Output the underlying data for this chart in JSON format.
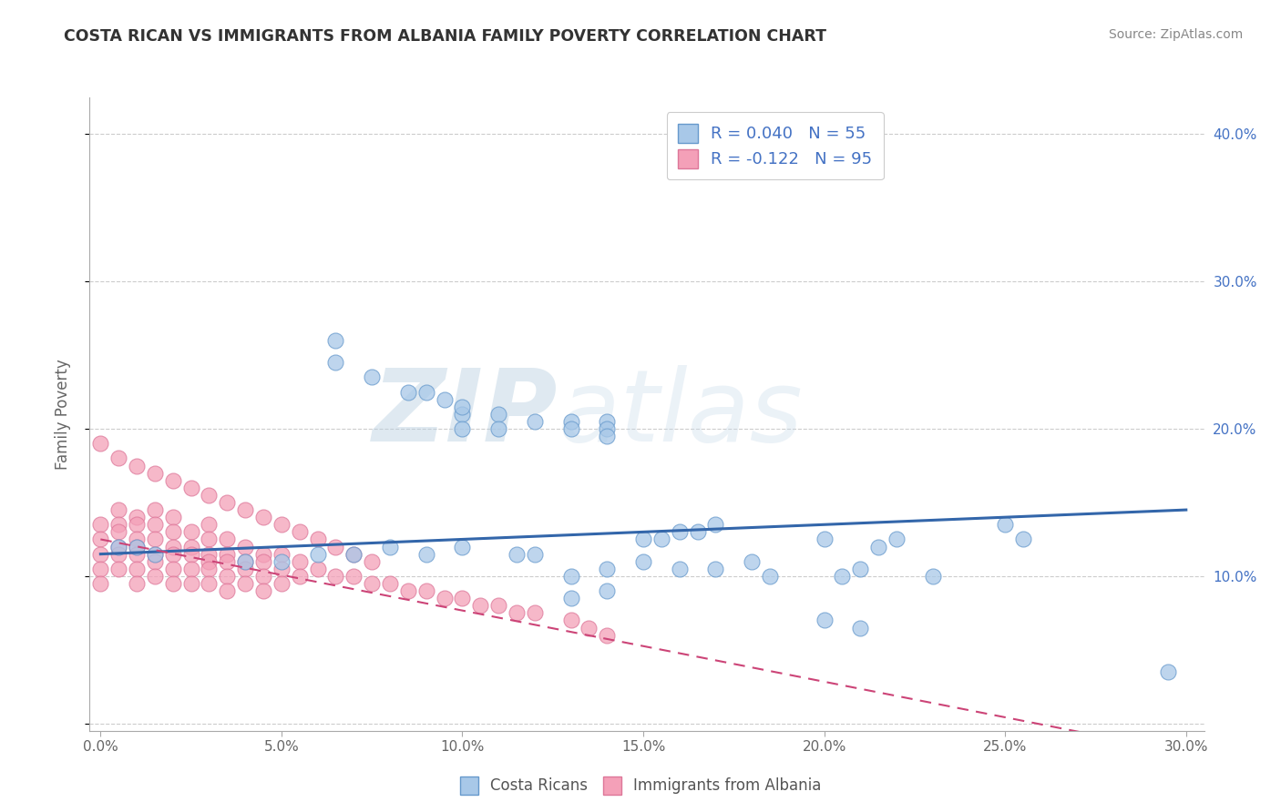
{
  "title": "COSTA RICAN VS IMMIGRANTS FROM ALBANIA FAMILY POVERTY CORRELATION CHART",
  "source": "Source: ZipAtlas.com",
  "ylabel": "Family Poverty",
  "xlim": [
    -0.003,
    0.305
  ],
  "ylim": [
    -0.005,
    0.425
  ],
  "xticks": [
    0.0,
    0.05,
    0.1,
    0.15,
    0.2,
    0.25,
    0.3
  ],
  "xtick_labels": [
    "0.0%",
    "5.0%",
    "10.0%",
    "15.0%",
    "20.0%",
    "25.0%",
    "30.0%"
  ],
  "yticks": [
    0.0,
    0.1,
    0.2,
    0.3,
    0.4
  ],
  "right_ytick_labels": [
    "10.0%",
    "20.0%",
    "30.0%",
    "40.0%"
  ],
  "right_yticks": [
    0.1,
    0.2,
    0.3,
    0.4
  ],
  "legend1_label": "R = 0.040   N = 55",
  "legend2_label": "R = -0.122   N = 95",
  "bottom_legend1": "Costa Ricans",
  "bottom_legend2": "Immigrants from Albania",
  "blue_color": "#a8c8e8",
  "blue_edge_color": "#6699cc",
  "pink_color": "#f4a0b8",
  "pink_edge_color": "#dd7799",
  "blue_line_color": "#3366aa",
  "pink_line_color": "#cc4477",
  "watermark": "ZIPatlas",
  "watermark_color": "#d0dff0",
  "blue_scatter_x": [
    0.065,
    0.065,
    0.075,
    0.085,
    0.09,
    0.095,
    0.1,
    0.1,
    0.1,
    0.11,
    0.11,
    0.12,
    0.13,
    0.13,
    0.14,
    0.14,
    0.14,
    0.15,
    0.155,
    0.16,
    0.165,
    0.17,
    0.2,
    0.205,
    0.21,
    0.215,
    0.25,
    0.255,
    0.295,
    0.04,
    0.05,
    0.06,
    0.07,
    0.08,
    0.09,
    0.1,
    0.115,
    0.12,
    0.13,
    0.14,
    0.15,
    0.16,
    0.17,
    0.18,
    0.185,
    0.22,
    0.23,
    0.005,
    0.01,
    0.015,
    0.13,
    0.14,
    0.2,
    0.21
  ],
  "blue_scatter_y": [
    0.26,
    0.245,
    0.235,
    0.225,
    0.225,
    0.22,
    0.21,
    0.215,
    0.2,
    0.21,
    0.2,
    0.205,
    0.205,
    0.2,
    0.205,
    0.2,
    0.195,
    0.125,
    0.125,
    0.13,
    0.13,
    0.135,
    0.125,
    0.1,
    0.105,
    0.12,
    0.135,
    0.125,
    0.035,
    0.11,
    0.11,
    0.115,
    0.115,
    0.12,
    0.115,
    0.12,
    0.115,
    0.115,
    0.1,
    0.105,
    0.11,
    0.105,
    0.105,
    0.11,
    0.1,
    0.125,
    0.1,
    0.12,
    0.12,
    0.115,
    0.085,
    0.09,
    0.07,
    0.065
  ],
  "pink_scatter_x": [
    0.0,
    0.0,
    0.0,
    0.0,
    0.0,
    0.005,
    0.005,
    0.005,
    0.005,
    0.005,
    0.005,
    0.01,
    0.01,
    0.01,
    0.01,
    0.01,
    0.01,
    0.01,
    0.015,
    0.015,
    0.015,
    0.015,
    0.015,
    0.015,
    0.02,
    0.02,
    0.02,
    0.02,
    0.02,
    0.02,
    0.025,
    0.025,
    0.025,
    0.025,
    0.025,
    0.03,
    0.03,
    0.03,
    0.03,
    0.03,
    0.03,
    0.035,
    0.035,
    0.035,
    0.035,
    0.035,
    0.04,
    0.04,
    0.04,
    0.04,
    0.045,
    0.045,
    0.045,
    0.045,
    0.05,
    0.05,
    0.05,
    0.055,
    0.055,
    0.06,
    0.065,
    0.07,
    0.075,
    0.08,
    0.085,
    0.09,
    0.095,
    0.1,
    0.105,
    0.11,
    0.115,
    0.12,
    0.13,
    0.135,
    0.14,
    0.0,
    0.005,
    0.01,
    0.015,
    0.02,
    0.025,
    0.03,
    0.035,
    0.04,
    0.045,
    0.05,
    0.055,
    0.06,
    0.065,
    0.07,
    0.075
  ],
  "pink_scatter_y": [
    0.135,
    0.125,
    0.115,
    0.105,
    0.095,
    0.145,
    0.135,
    0.13,
    0.12,
    0.115,
    0.105,
    0.14,
    0.135,
    0.125,
    0.12,
    0.115,
    0.105,
    0.095,
    0.145,
    0.135,
    0.125,
    0.115,
    0.11,
    0.1,
    0.14,
    0.13,
    0.12,
    0.115,
    0.105,
    0.095,
    0.13,
    0.12,
    0.115,
    0.105,
    0.095,
    0.135,
    0.125,
    0.115,
    0.11,
    0.105,
    0.095,
    0.125,
    0.115,
    0.11,
    0.1,
    0.09,
    0.12,
    0.11,
    0.105,
    0.095,
    0.115,
    0.11,
    0.1,
    0.09,
    0.115,
    0.105,
    0.095,
    0.11,
    0.1,
    0.105,
    0.1,
    0.1,
    0.095,
    0.095,
    0.09,
    0.09,
    0.085,
    0.085,
    0.08,
    0.08,
    0.075,
    0.075,
    0.07,
    0.065,
    0.06,
    0.19,
    0.18,
    0.175,
    0.17,
    0.165,
    0.16,
    0.155,
    0.15,
    0.145,
    0.14,
    0.135,
    0.13,
    0.125,
    0.12,
    0.115,
    0.11
  ]
}
